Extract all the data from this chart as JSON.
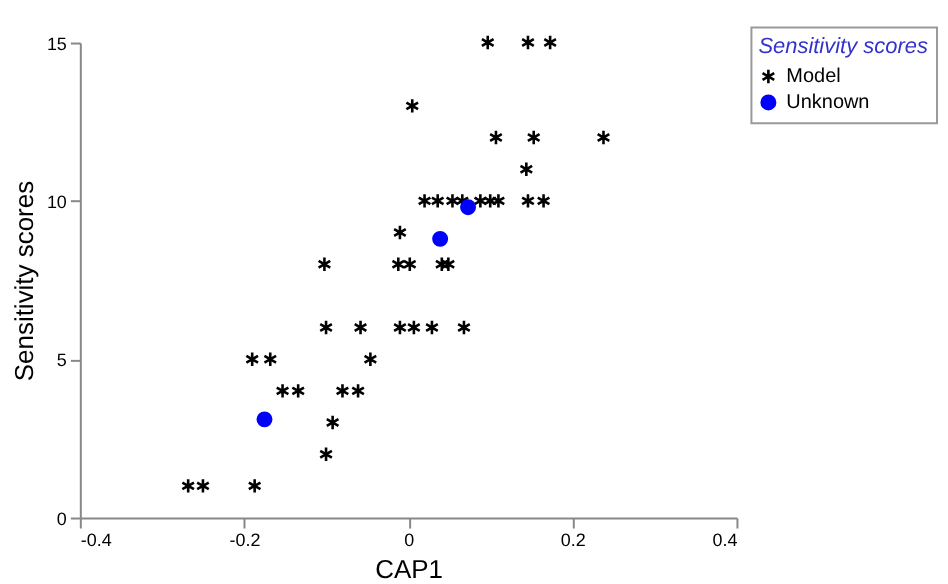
{
  "chart_data": {
    "type": "scatter",
    "xlabel": "CAP1",
    "ylabel": "Sensitivity scores",
    "legend_title": "Sensitivity scores",
    "legend": "top right",
    "grid": false,
    "xlim": [
      -0.4,
      0.4
    ],
    "xticks": [
      -0.4,
      -0.2,
      0,
      0.2,
      0.4
    ],
    "ylim": [
      0,
      15
    ],
    "yticks": [
      0,
      5,
      10,
      15
    ],
    "series": [
      {
        "name": "Model",
        "color": "#000000",
        "marker": "cross",
        "x": [
          0.097,
          0.146,
          0.173,
          0.005,
          0.107,
          0.153,
          0.238,
          0.144,
          0.02,
          0.036,
          0.054,
          0.066,
          0.088,
          0.1,
          0.11,
          0.146,
          0.165,
          -0.01,
          -0.102,
          -0.012,
          0.002,
          0.041,
          0.049,
          -0.1,
          -0.058,
          -0.01,
          0.007,
          0.029,
          0.068,
          -0.19,
          -0.168,
          -0.046,
          -0.153,
          -0.134,
          -0.08,
          -0.061,
          -0.092,
          -0.1,
          -0.268,
          -0.25,
          -0.187
        ],
        "values": [
          15,
          15,
          15,
          13,
          12,
          12,
          12,
          11,
          10,
          10,
          10,
          10,
          10,
          10,
          10,
          10,
          10,
          9,
          8,
          8,
          8,
          8,
          8,
          6,
          6,
          6,
          6,
          6,
          6,
          5,
          5,
          5,
          4,
          4,
          4,
          4,
          3,
          2,
          1,
          1,
          1
        ]
      },
      {
        "name": "Unknown",
        "color": "#0000ff",
        "marker": "circle",
        "x": [
          0.073,
          0.039,
          -0.175
        ],
        "values": [
          9.8,
          8.8,
          3.1
        ]
      }
    ]
  }
}
